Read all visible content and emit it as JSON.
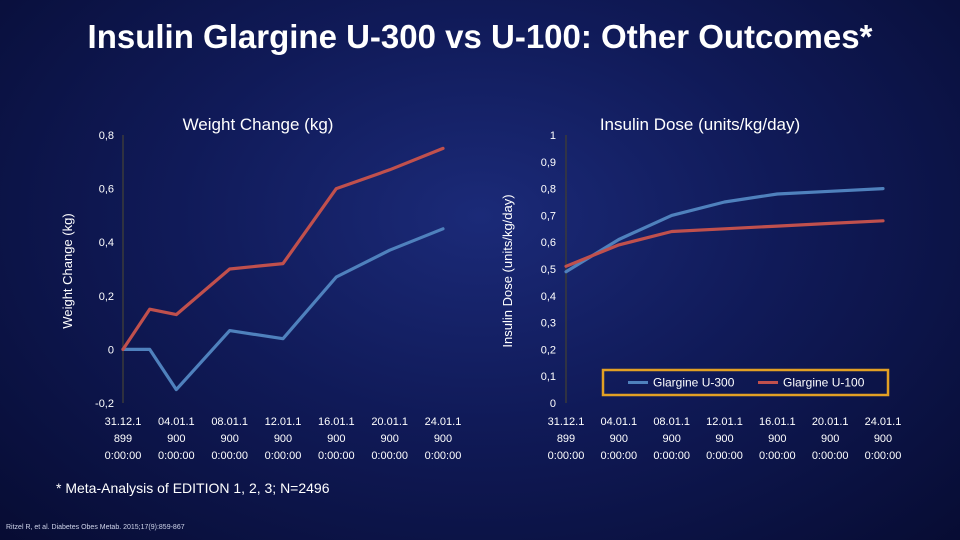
{
  "slide": {
    "title": "Insulin Glargine U-300 vs U-100: Other Outcomes*",
    "footnote": "* Meta-Analysis of EDITION 1, 2, 3; N=2496",
    "citation": "Ritzel R, et al. Diabetes Obes Metab. 2015;17(9):859-867"
  },
  "chart_data": [
    {
      "type": "line",
      "title": "Weight Change (kg)",
      "ylabel": "Weight Change (kg)",
      "xlabel": "",
      "ylim": [
        -0.2,
        0.8
      ],
      "y_ticks": [
        "-0,2",
        "0",
        "0,2",
        "0,4",
        "0,6",
        "0,8"
      ],
      "x_tick_labels": [
        [
          "31.12.1",
          "899",
          "0:00:00"
        ],
        [
          "04.01.1",
          "900",
          "0:00:00"
        ],
        [
          "08.01.1",
          "900",
          "0:00:00"
        ],
        [
          "12.01.1",
          "900",
          "0:00:00"
        ],
        [
          "16.01.1",
          "900",
          "0:00:00"
        ],
        [
          "20.01.1",
          "900",
          "0:00:00"
        ],
        [
          "24.01.1",
          "900",
          "0:00:00"
        ]
      ],
      "x": [
        0,
        1,
        2,
        4,
        6,
        8,
        10,
        12
      ],
      "series": [
        {
          "name": "Glargine U-300",
          "color": "#4f81bd",
          "values": [
            0,
            0,
            -0.15,
            0.07,
            0.04,
            0.27,
            0.37,
            0.45
          ]
        },
        {
          "name": "Glargine U-100",
          "color": "#c0504d",
          "values": [
            0,
            0.15,
            0.13,
            0.3,
            0.32,
            0.6,
            0.67,
            0.75
          ]
        }
      ],
      "grid": false,
      "legend": "none"
    },
    {
      "type": "line",
      "title": "Insulin Dose (units/kg/day)",
      "ylabel": "Insulin Dose (units/kg/day)",
      "xlabel": "",
      "ylim": [
        0,
        1
      ],
      "y_ticks": [
        "0",
        "0,1",
        "0,2",
        "0,3",
        "0,4",
        "0,5",
        "0,6",
        "0,7",
        "0,8",
        "0,9",
        "1"
      ],
      "x_tick_labels": [
        [
          "31.12.1",
          "899",
          "0:00:00"
        ],
        [
          "04.01.1",
          "900",
          "0:00:00"
        ],
        [
          "08.01.1",
          "900",
          "0:00:00"
        ],
        [
          "12.01.1",
          "900",
          "0:00:00"
        ],
        [
          "16.01.1",
          "900",
          "0:00:00"
        ],
        [
          "20.01.1",
          "900",
          "0:00:00"
        ],
        [
          "24.01.1",
          "900",
          "0:00:00"
        ]
      ],
      "x": [
        0,
        2,
        4,
        6,
        8,
        10,
        12
      ],
      "series": [
        {
          "name": "Glargine U-300",
          "color": "#4f81bd",
          "values": [
            0.49,
            0.61,
            0.7,
            0.75,
            0.78,
            0.79,
            0.8
          ]
        },
        {
          "name": "Glargine U-100",
          "color": "#c0504d",
          "values": [
            0.51,
            0.59,
            0.64,
            0.65,
            0.66,
            0.67,
            0.68
          ]
        }
      ],
      "grid": false,
      "legend": "bottom-right",
      "legend_border_color": "#e2a024"
    }
  ]
}
